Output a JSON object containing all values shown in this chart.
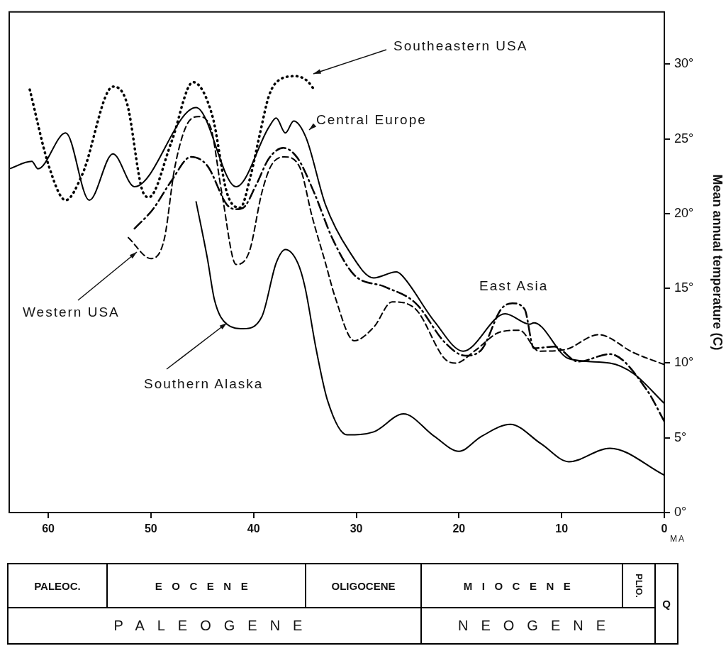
{
  "chart_data": {
    "type": "line",
    "ylabel": "Mean annual temperature (C)",
    "xlabel": "MA",
    "xlim": [
      63.8,
      0
    ],
    "xticks": [
      60,
      50,
      40,
      30,
      20,
      10,
      0
    ],
    "ylim": [
      0,
      33.5
    ],
    "yticks": [
      {
        "value": 0,
        "label": "0°"
      },
      {
        "value": 5,
        "label": "5°"
      },
      {
        "value": 10,
        "label": "10°"
      },
      {
        "value": 15,
        "label": "15°"
      },
      {
        "value": 20,
        "label": "20°"
      },
      {
        "value": 25,
        "label": "25°"
      },
      {
        "value": 30,
        "label": "30°"
      }
    ],
    "legend": false,
    "series": [
      {
        "name": "Southeastern USA",
        "color": "#000000",
        "line_style": "dotted",
        "x": [
          61.8,
          59.9,
          58.3,
          56.7,
          53.7,
          52.3,
          50.9,
          50.2,
          48.0,
          45.9,
          44.0,
          42.6,
          41.3,
          40.3,
          39.4,
          38.5,
          37.6,
          35.9,
          34.8,
          34.2
        ],
        "values": [
          28.3,
          23.1,
          20.9,
          22.6,
          28.5,
          27.3,
          21.7,
          21.1,
          24.8,
          28.8,
          26.5,
          21.4,
          20.4,
          22.5,
          25.3,
          27.9,
          28.9,
          29.2,
          28.9,
          28.4
        ]
      },
      {
        "name": "Central Europe",
        "color": "#000000",
        "line_style": "solid",
        "x": [
          63.8,
          61.6,
          61.0,
          58.3,
          56.0,
          53.7,
          51.6,
          45.6,
          41.7,
          38.5,
          37.8,
          36.9,
          36.1,
          34.9,
          33.0,
          30.7,
          28.3,
          26.1,
          25.6,
          22.4,
          19.6,
          15.5,
          13.1,
          12.7,
          9.3,
          5.3,
          3.0,
          0
        ],
        "values": [
          23.0,
          23.5,
          23.0,
          25.4,
          20.9,
          24.0,
          21.8,
          27.1,
          21.8,
          25.8,
          26.4,
          25.4,
          26.2,
          25.1,
          20.6,
          17.5,
          15.7,
          16.1,
          15.9,
          12.8,
          10.8,
          13.3,
          12.6,
          12.7,
          10.3,
          10.0,
          9.3,
          7.3
        ]
      },
      {
        "name": "East Asia",
        "color": "#000000",
        "line_style": "dashdot",
        "x": [
          51.6,
          49.8,
          48.0,
          46.1,
          44.5,
          42.6,
          41.7,
          41.0,
          39.7,
          38.5,
          37.1,
          35.7,
          34.1,
          32.3,
          30.2,
          27.2,
          24.2,
          21.4,
          19.4,
          17.8,
          15.9,
          14.8,
          13.6,
          12.7,
          10.7,
          8.4,
          5.3,
          1.7,
          0
        ],
        "values": [
          19.0,
          20.3,
          22.2,
          23.8,
          23.2,
          20.6,
          20.3,
          20.4,
          22.0,
          23.7,
          24.4,
          23.7,
          21.4,
          18.3,
          15.9,
          15.1,
          14.0,
          11.4,
          10.5,
          10.9,
          13.6,
          14.0,
          13.6,
          11.0,
          11.1,
          10.1,
          10.6,
          8.2,
          6.1
        ]
      },
      {
        "name": "Western USA",
        "color": "#000000",
        "line_style": "dashed",
        "x": [
          52.2,
          50.0,
          48.7,
          47.7,
          46.6,
          45.4,
          44.2,
          43.1,
          41.7,
          40.4,
          39.2,
          38.3,
          37.0,
          35.5,
          34.3,
          33.0,
          32.1,
          30.2,
          28.3,
          26.5,
          24.2,
          21.4,
          20.3,
          18.5,
          15.9,
          14.1,
          12.2,
          9.7,
          6.4,
          3.0,
          0
        ],
        "values": [
          18.4,
          17.0,
          18.3,
          23.0,
          25.8,
          26.5,
          25.8,
          21.4,
          16.6,
          17.5,
          21.4,
          23.2,
          23.8,
          23.1,
          19.8,
          16.7,
          14.5,
          11.5,
          12.4,
          14.1,
          13.6,
          10.3,
          10.0,
          10.8,
          12.1,
          12.2,
          10.8,
          10.9,
          11.9,
          10.7,
          9.9
        ]
      },
      {
        "name": "Southern Alaska",
        "color": "#000000",
        "line_style": "solid",
        "x": [
          45.6,
          44.5,
          43.8,
          42.6,
          41.0,
          39.2,
          37.8,
          36.9,
          35.7,
          35.0,
          33.9,
          32.8,
          30.9,
          28.3,
          25.4,
          22.4,
          20.0,
          17.8,
          15.0,
          12.0,
          9.3,
          5.3,
          0
        ],
        "values": [
          20.8,
          17.0,
          14.2,
          12.6,
          12.3,
          13.1,
          16.7,
          17.6,
          16.7,
          15.1,
          10.9,
          7.5,
          5.2,
          5.4,
          6.6,
          5.1,
          4.1,
          5.1,
          5.9,
          4.6,
          3.4,
          4.3,
          2.5
        ]
      }
    ],
    "annotations": [
      "PALEOC.",
      "EOCENE",
      "OLIGOCENE",
      "MIOCENE",
      "PLIO.",
      "Q",
      "PALEOGENE",
      "NEOGENE"
    ]
  }
}
